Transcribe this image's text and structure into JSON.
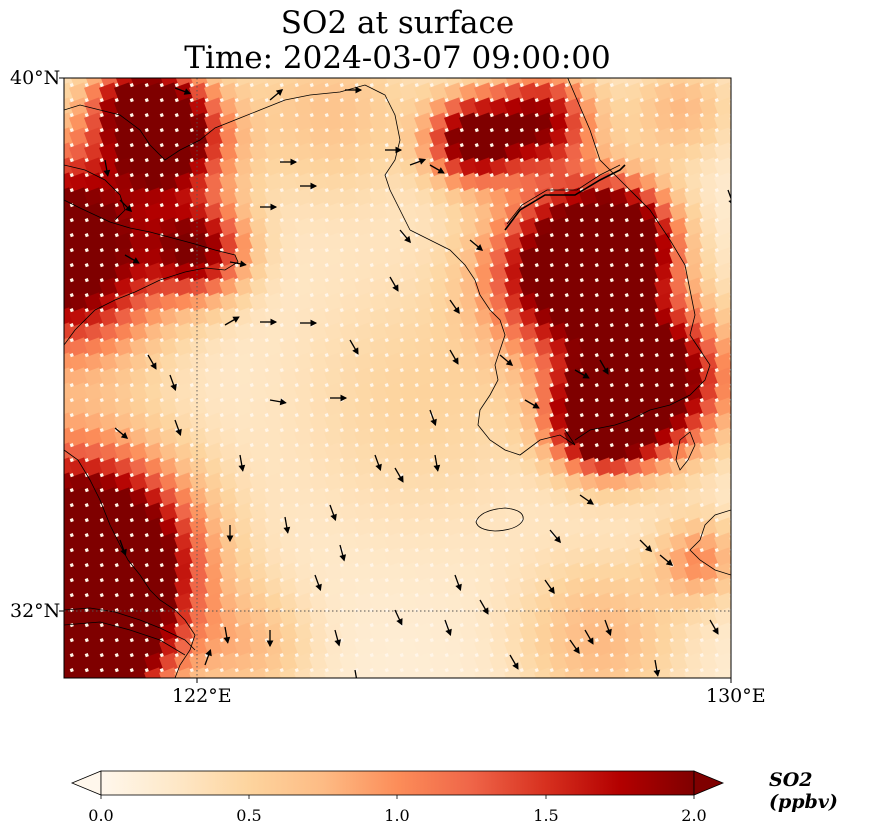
{
  "title": {
    "line1": "SO2 at surface",
    "line2": "Time: 2024-03-07 09:00:00"
  },
  "axes": {
    "lat_ticks": [
      {
        "label": "40°N",
        "value": 40
      },
      {
        "label": "32°N",
        "value": 32
      }
    ],
    "lon_ticks": [
      {
        "label": "122°E",
        "value": 122
      },
      {
        "label": "130°E",
        "value": 130
      }
    ],
    "extent": {
      "lon_min": 120,
      "lon_max": 130,
      "lat_min": 31,
      "lat_max": 40
    },
    "gridlines": "dotted"
  },
  "colorbar": {
    "label": "SO2 (ppbv)",
    "min": 0.0,
    "max": 2.0,
    "ticks": [
      "0.0",
      "0.5",
      "1.0",
      "1.5",
      "2.0"
    ],
    "colormap": "OrRd",
    "extend": "both",
    "colors": [
      "#fff7ec",
      "#fee8c8",
      "#fdd49e",
      "#fdbb84",
      "#fc8d59",
      "#ef6548",
      "#d7301f",
      "#b30000",
      "#7f0000"
    ]
  },
  "map": {
    "field": "SO2 concentration",
    "overlays": [
      "coastlines",
      "wind vectors"
    ]
  }
}
